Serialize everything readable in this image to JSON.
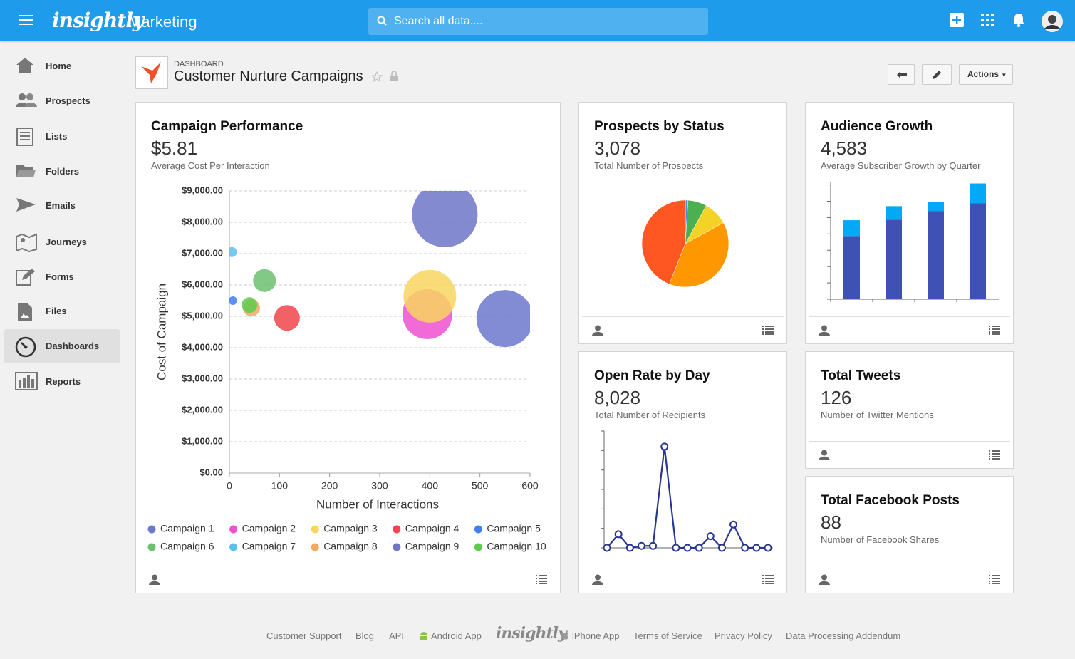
{
  "header": {
    "brand": "insightly",
    "section": "Marketing",
    "search_placeholder": "Search all data...."
  },
  "sidebar": [
    "Home",
    "Prospects",
    "Lists",
    "Folders",
    "Emails",
    "Journeys",
    "Forms",
    "Files",
    "Dashboards",
    "Reports"
  ],
  "dashboard": {
    "label": "DASHBOARD",
    "title": "Customer Nurture Campaigns",
    "actions": "Actions"
  },
  "widgets": [
    {
      "title": "Campaign Performance",
      "metric": "$5.81",
      "subtitle": "Average Cost Per Interaction"
    },
    {
      "title": "Prospects by Status",
      "metric": "3,078",
      "subtitle": "Total Number of Prospects"
    },
    {
      "title": "Audience Growth",
      "metric": "4,583",
      "subtitle": "Average Subscriber Growth by Quarter"
    },
    {
      "title": "Open Rate by Day",
      "metric": "8,028",
      "subtitle": "Total Number of Recipients"
    },
    {
      "title": "Total Tweets",
      "metric": "126",
      "subtitle": "Number of Twitter Mentions"
    },
    {
      "title": "Total Facebook Posts",
      "metric": "88",
      "subtitle": "Number of Facebook Shares"
    }
  ],
  "chart_data": [
    {
      "type": "bubble",
      "xlabel": "Number of Interactions",
      "ylabel": "Cost of Campaign",
      "xlim": [
        0,
        600
      ],
      "xticks": [
        0,
        100,
        200,
        300,
        400,
        500,
        600
      ],
      "ylim": [
        0,
        9000
      ],
      "yticks": [
        {
          "value": 0,
          "label": "$0.00"
        },
        {
          "value": 1000,
          "label": "$1,000.00"
        },
        {
          "value": 2000,
          "label": "$2,000.00"
        },
        {
          "value": 3000,
          "label": "$3,000.00"
        },
        {
          "value": 4000,
          "label": "$4,000.00"
        },
        {
          "value": 5000,
          "label": "$5,000.00"
        },
        {
          "value": 6000,
          "label": "$6,000.00"
        },
        {
          "value": 7000,
          "label": "$7,000.00"
        },
        {
          "value": 8000,
          "label": "$8,000.00"
        },
        {
          "value": 9000,
          "label": "$9,000.00"
        }
      ],
      "grid": true,
      "series": [
        {
          "name": "Campaign 1",
          "color": "#6c78cc",
          "x": [
            550
          ],
          "values": [
            4930
          ],
          "sizes": [
            40
          ]
        },
        {
          "name": "Campaign 2",
          "color": "#f050d0",
          "x": [
            395
          ],
          "values": [
            5070
          ],
          "sizes": [
            35
          ]
        },
        {
          "name": "Campaign 3",
          "color": "#f8d560",
          "x": [
            400
          ],
          "values": [
            5640
          ],
          "sizes": [
            37
          ]
        },
        {
          "name": "Campaign 4",
          "color": "#f0454a",
          "x": [
            115
          ],
          "values": [
            4950
          ],
          "sizes": [
            18
          ]
        },
        {
          "name": "Campaign 5",
          "color": "#3f7ff0",
          "x": [
            7
          ],
          "values": [
            5500
          ],
          "sizes": [
            6
          ]
        },
        {
          "name": "Campaign 6",
          "color": "#6cc070",
          "x": [
            70
          ],
          "values": [
            6140
          ],
          "sizes": [
            16
          ]
        },
        {
          "name": "Campaign 7",
          "color": "#5bc0f0",
          "x": [
            5
          ],
          "values": [
            7050
          ],
          "sizes": [
            7
          ]
        },
        {
          "name": "Campaign 8",
          "color": "#f5a860",
          "x": [
            44
          ],
          "values": [
            5270
          ],
          "sizes": [
            12
          ]
        },
        {
          "name": "Campaign 9",
          "color": "#6f76c8",
          "x": [
            430
          ],
          "values": [
            8250
          ],
          "sizes": [
            46
          ]
        },
        {
          "name": "Campaign 10",
          "color": "#5ccc4c",
          "x": [
            40
          ],
          "values": [
            5360
          ],
          "sizes": [
            11
          ]
        }
      ]
    },
    {
      "type": "pie",
      "values": [
        1,
        7,
        9,
        39,
        44
      ],
      "colors": [
        "#3f8ff0",
        "#4caf50",
        "#f5d226",
        "#ff9800",
        "#ff5722"
      ]
    },
    {
      "type": "bar",
      "ylim": [
        0,
        7.2
      ],
      "yticks": [
        0,
        1,
        2,
        3,
        4,
        5,
        6,
        7
      ],
      "series": [
        {
          "color": "#3f51b5",
          "values": [
            3.87,
            4.87,
            5.39,
            5.87
          ]
        },
        {
          "color": "#03a9f4",
          "values": [
            0.97,
            0.83,
            0.57,
            1.22
          ]
        }
      ]
    },
    {
      "type": "line",
      "color": "#283593",
      "ylim": [
        0,
        6
      ],
      "yticks": [
        0,
        1,
        2,
        3,
        4,
        5,
        6
      ],
      "values": [
        0,
        0.7,
        0,
        0.1,
        0.1,
        5.2,
        0,
        0,
        0,
        0.6,
        0,
        1.2,
        0,
        0,
        0
      ]
    }
  ],
  "footer": {
    "links": [
      "Customer Support",
      "Blog",
      "API",
      "Android App",
      "iPhone App",
      "Terms of Service",
      "Privacy Policy",
      "Data Processing Addendum"
    ],
    "logo": "insightly"
  }
}
